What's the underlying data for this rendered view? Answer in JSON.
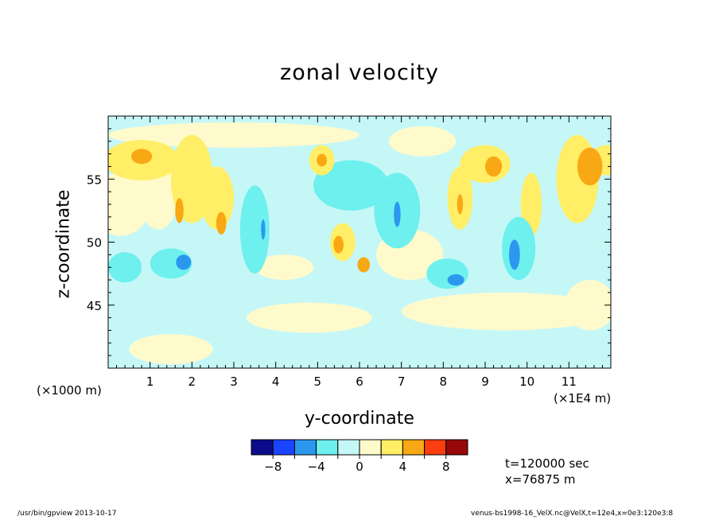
{
  "chart_data": {
    "type": "heatmap",
    "title": "zonal velocity",
    "xlabel": "y-coordinate",
    "ylabel": "z-coordinate",
    "x_scale_label": "(×1E4 m)",
    "y_scale_label": "(×1000 m)",
    "xlim": [
      0,
      12.0
    ],
    "ylim": [
      40,
      60
    ],
    "x_ticks": [
      1,
      2,
      3,
      4,
      5,
      6,
      7,
      8,
      9,
      10,
      11
    ],
    "y_ticks": [
      45,
      50,
      55
    ],
    "colorbar": {
      "levels": [
        -10,
        -8,
        -6,
        -4,
        -2,
        0,
        2,
        4,
        6,
        8,
        10
      ],
      "labels": [
        "-8",
        "-4",
        "0",
        "4",
        "8"
      ],
      "label_values": [
        -8,
        -4,
        0,
        4,
        8
      ],
      "colors": [
        "#0b0b8c",
        "#1a44ff",
        "#2b98ee",
        "#6ef0ee",
        "#c6f7f7",
        "#fffacc",
        "#ffee66",
        "#f8a814",
        "#fb3d10",
        "#980808"
      ]
    },
    "background_color": "#c6f7f7",
    "features": [
      {
        "y": 0.3,
        "z": 53,
        "ry": 0.7,
        "rz": 2.5,
        "value": 1.0
      },
      {
        "y": 0.8,
        "z": 56.5,
        "ry": 0.9,
        "rz": 1.6,
        "value": 3.0
      },
      {
        "y": 0.8,
        "z": 56.8,
        "ry": 0.25,
        "rz": 0.6,
        "value": 5.0
      },
      {
        "y": 1.2,
        "z": 54,
        "ry": 0.5,
        "rz": 3.0,
        "value": 1.5
      },
      {
        "y": 2.0,
        "z": 55,
        "ry": 0.5,
        "rz": 3.5,
        "value": 2.0
      },
      {
        "y": 2.6,
        "z": 53.5,
        "ry": 0.4,
        "rz": 2.5,
        "value": 2.5
      },
      {
        "y": 2.7,
        "z": 51.5,
        "ry": 0.12,
        "rz": 0.9,
        "value": 4.5
      },
      {
        "y": 1.7,
        "z": 52.5,
        "ry": 0.1,
        "rz": 1.0,
        "value": 4.2
      },
      {
        "y": 1.5,
        "z": 48.3,
        "ry": 0.5,
        "rz": 1.2,
        "value": -3.5
      },
      {
        "y": 1.8,
        "z": 48.4,
        "ry": 0.18,
        "rz": 0.6,
        "value": -5.0
      },
      {
        "y": 0.4,
        "z": 48,
        "ry": 0.4,
        "rz": 1.2,
        "value": -2.5
      },
      {
        "y": 3.5,
        "z": 51,
        "ry": 0.35,
        "rz": 3.5,
        "value": -2.2
      },
      {
        "y": 3.7,
        "z": 51,
        "ry": 0.05,
        "rz": 0.8,
        "value": -4.5
      },
      {
        "y": 4.2,
        "z": 48,
        "ry": 0.7,
        "rz": 1.0,
        "value": 0.8
      },
      {
        "y": 5.1,
        "z": 56.5,
        "ry": 0.3,
        "rz": 1.2,
        "value": 3.5
      },
      {
        "y": 5.1,
        "z": 56.5,
        "ry": 0.12,
        "rz": 0.5,
        "value": 5.0
      },
      {
        "y": 5.6,
        "z": 50,
        "ry": 0.3,
        "rz": 1.5,
        "value": 3.0
      },
      {
        "y": 5.5,
        "z": 49.8,
        "ry": 0.12,
        "rz": 0.7,
        "value": 5.0
      },
      {
        "y": 6.1,
        "z": 48.2,
        "ry": 0.15,
        "rz": 0.6,
        "value": 4.6
      },
      {
        "y": 5.8,
        "z": 54.5,
        "ry": 0.9,
        "rz": 2.0,
        "value": -2.3
      },
      {
        "y": 6.9,
        "z": 52.5,
        "ry": 0.55,
        "rz": 3.0,
        "value": -2.6
      },
      {
        "y": 6.9,
        "z": 52.2,
        "ry": 0.08,
        "rz": 1.0,
        "value": -5.0
      },
      {
        "y": 8.1,
        "z": 47.5,
        "ry": 0.5,
        "rz": 1.2,
        "value": -3.0
      },
      {
        "y": 8.3,
        "z": 47.0,
        "ry": 0.2,
        "rz": 0.45,
        "value": -5.5
      },
      {
        "y": 9.8,
        "z": 49.5,
        "ry": 0.4,
        "rz": 2.5,
        "value": -3.0
      },
      {
        "y": 9.7,
        "z": 49.0,
        "ry": 0.13,
        "rz": 1.2,
        "value": -5.2
      },
      {
        "y": 9.0,
        "z": 56.2,
        "ry": 0.6,
        "rz": 1.5,
        "value": 3.0
      },
      {
        "y": 9.2,
        "z": 56.0,
        "ry": 0.2,
        "rz": 0.8,
        "value": 5.0
      },
      {
        "y": 8.4,
        "z": 53.5,
        "ry": 0.3,
        "rz": 2.5,
        "value": 2.5
      },
      {
        "y": 8.4,
        "z": 53.0,
        "ry": 0.07,
        "rz": 0.8,
        "value": 4.6
      },
      {
        "y": 10.1,
        "z": 53,
        "ry": 0.25,
        "rz": 2.5,
        "value": 2.0
      },
      {
        "y": 11.2,
        "z": 55,
        "ry": 0.5,
        "rz": 3.5,
        "value": 2.8
      },
      {
        "y": 11.5,
        "z": 56,
        "ry": 0.3,
        "rz": 1.5,
        "value": 4.5
      },
      {
        "y": 11.9,
        "z": 56.5,
        "ry": 0.4,
        "rz": 1.2,
        "value": 2.0
      },
      {
        "y": 3.0,
        "z": 58.5,
        "ry": 3.0,
        "rz": 1.0,
        "value": 1.0
      },
      {
        "y": 7.5,
        "z": 58,
        "ry": 0.8,
        "rz": 1.2,
        "value": 1.0
      },
      {
        "y": 9.5,
        "z": 44.5,
        "ry": 2.5,
        "rz": 1.5,
        "value": 1.0
      },
      {
        "y": 4.8,
        "z": 44,
        "ry": 1.5,
        "rz": 1.2,
        "value": 1.0
      },
      {
        "y": 7.2,
        "z": 49,
        "ry": 0.8,
        "rz": 2.0,
        "value": 1.0
      },
      {
        "y": 1.5,
        "z": 41.5,
        "ry": 1.0,
        "rz": 1.2,
        "value": 1.0
      },
      {
        "y": 11.5,
        "z": 45,
        "ry": 0.6,
        "rz": 2.0,
        "value": 1.0
      },
      {
        "y": 2.4,
        "z": 45.0,
        "ry": 1.0,
        "rz": 1.4,
        "value": -1.0
      }
    ]
  },
  "annotations": {
    "x_scale": "(×1E4 m)",
    "y_scale": "(×1000 m)",
    "time": "t=120000 sec",
    "position": "x=76875 m"
  },
  "footer": {
    "left": "/usr/bin/gpview  2013-10-17",
    "right": "venus-bs1998-16_VelX.nc@VelX,t=12e4,x=0e3:120e3:8"
  }
}
